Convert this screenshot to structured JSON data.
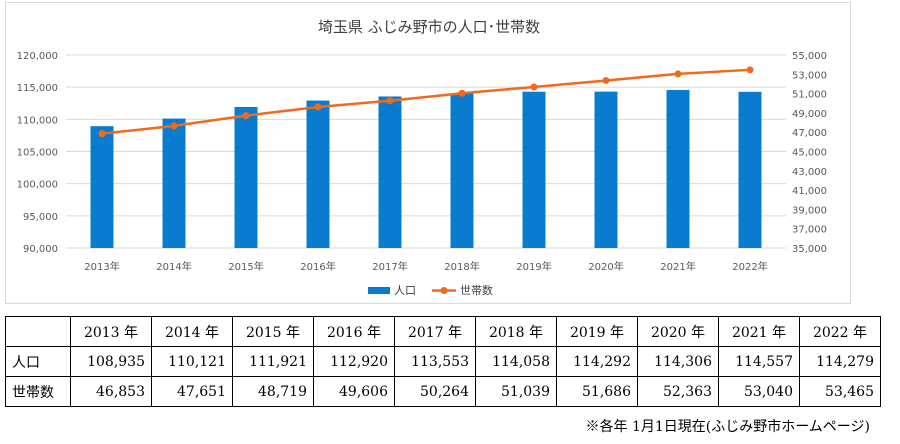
{
  "chart_data": {
    "type": "bar+line",
    "title": "埼玉県 ふじみ野市の人口･世帯数",
    "categories": [
      "2013年",
      "2014年",
      "2015年",
      "2016年",
      "2017年",
      "2018年",
      "2019年",
      "2020年",
      "2021年",
      "2022年"
    ],
    "series": [
      {
        "name": "人口",
        "type": "bar",
        "axis": "left",
        "color": "#0a7ccf",
        "values": [
          108935,
          110121,
          111921,
          112920,
          113553,
          114058,
          114292,
          114306,
          114557,
          114279
        ]
      },
      {
        "name": "世帯数",
        "type": "line",
        "axis": "right",
        "color": "#f06a1e",
        "values": [
          46853,
          47651,
          48719,
          49606,
          50264,
          51039,
          51686,
          52363,
          53040,
          53465
        ]
      }
    ],
    "y_left": {
      "min": 90000,
      "max": 120000,
      "step": 5000,
      "tick_labels": [
        "90,000",
        "95,000",
        "100,000",
        "105,000",
        "110,000",
        "115,000",
        "120,000"
      ]
    },
    "y_right": {
      "min": 35000,
      "max": 55000,
      "step": 2000,
      "tick_labels": [
        "35,000",
        "37,000",
        "39,000",
        "41,000",
        "43,000",
        "45,000",
        "47,000",
        "49,000",
        "51,000",
        "53,000",
        "55,000"
      ]
    },
    "grid": true,
    "legend_position": "bottom"
  },
  "table": {
    "headers": [
      "",
      "2013 年",
      "2014 年",
      "2015 年",
      "2016 年",
      "2017 年",
      "2018 年",
      "2019 年",
      "2020 年",
      "2021 年",
      "2022 年"
    ],
    "rows": [
      {
        "label": "人口",
        "values": [
          "108,935",
          "110,121",
          "111,921",
          "112,920",
          "113,553",
          "114,058",
          "114,292",
          "114,306",
          "114,557",
          "114,279"
        ]
      },
      {
        "label": "世帯数",
        "values": [
          "46,853",
          "47,651",
          "48,719",
          "49,606",
          "50,264",
          "51,039",
          "51,686",
          "52,363",
          "53,040",
          "53,465"
        ]
      }
    ]
  },
  "footnote": "※各年 1月1日現在(ふじみ野市ホームページ)"
}
